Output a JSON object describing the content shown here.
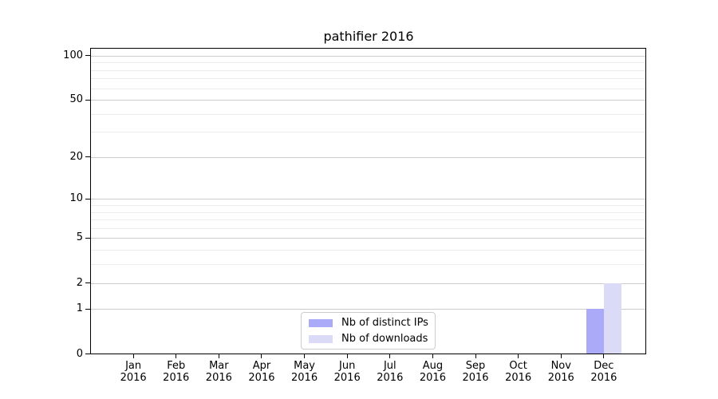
{
  "chart_data": {
    "type": "bar",
    "title": "pathifier 2016",
    "categories": [
      "Jan",
      "Feb",
      "Mar",
      "Apr",
      "May",
      "Jun",
      "Jul",
      "Aug",
      "Sep",
      "Oct",
      "Nov",
      "Dec"
    ],
    "x_tick_year": "2016",
    "series": [
      {
        "name": "Nb of distinct IPs",
        "color": "#aaaaf8",
        "values": [
          0,
          0,
          0,
          0,
          0,
          0,
          0,
          0,
          0,
          0,
          0,
          1
        ]
      },
      {
        "name": "Nb of downloads",
        "color": "#dbdbf7",
        "values": [
          0,
          0,
          0,
          0,
          0,
          0,
          0,
          0,
          0,
          0,
          0,
          2
        ]
      }
    ],
    "y_scale": "log1p",
    "y_major_ticks": [
      0,
      1,
      2,
      5,
      10,
      20,
      50,
      100
    ],
    "y_minor_gridlines": [
      3,
      4,
      6,
      7,
      8,
      9,
      30,
      40,
      60,
      70,
      80,
      90
    ],
    "ylim": [
      0,
      115
    ],
    "grid": "on",
    "legend_position": "lower center"
  },
  "colors": {
    "axis": "#000000",
    "major_grid": "#cccccc",
    "minor_grid": "#ededed",
    "background": "#ffffff",
    "legend_border": "#cccccc"
  }
}
